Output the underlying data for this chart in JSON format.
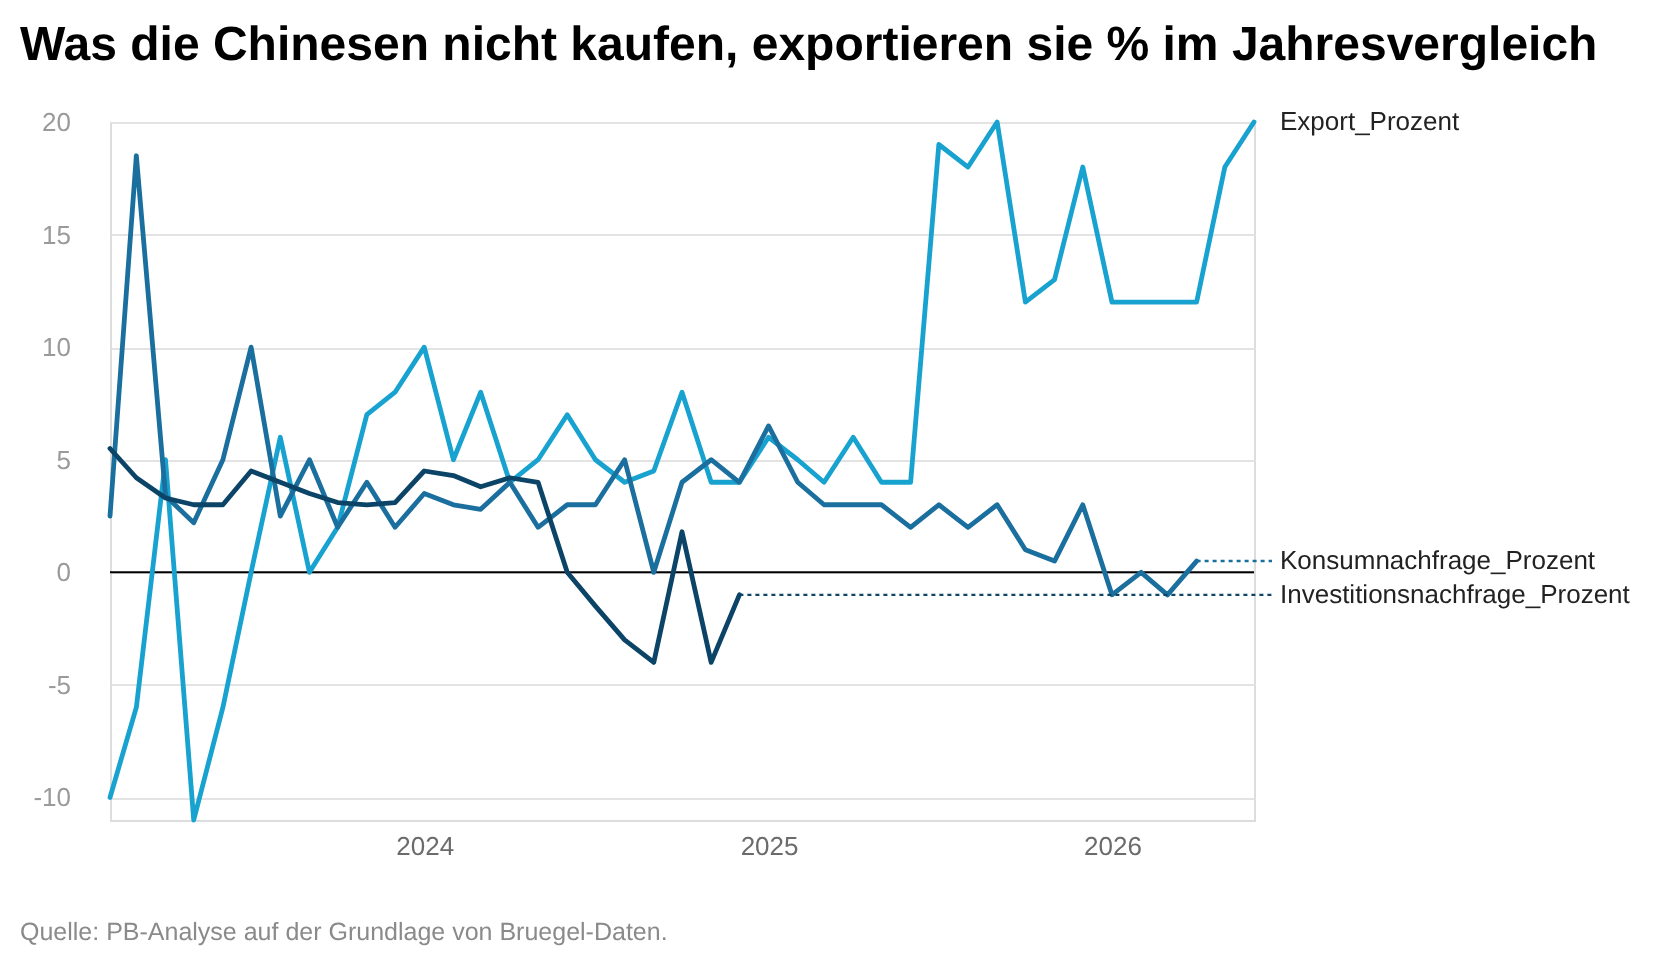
{
  "chart_data": {
    "type": "line",
    "title": "Was die Chinesen nicht kaufen, exportieren sie % im Jahresvergleich",
    "annotations": [
      "Quelle: PB-Analyse auf der Grundlage von Bruegel-Daten."
    ],
    "xlim": [
      "2023-02",
      "2026-06"
    ],
    "xticks": [
      "2024",
      "2025",
      "2026"
    ],
    "ylim": [
      -11,
      20
    ],
    "yticks": [
      -10,
      -5,
      0,
      5,
      10,
      15,
      20
    ],
    "grid": "y",
    "ref_lines": [
      {
        "axis": "y",
        "value": 0,
        "color": "#000000"
      }
    ],
    "series": [
      {
        "name": "Export_Prozent",
        "color": "#18a2d0",
        "x": [
          "2023-02",
          "2023-03",
          "2023-04",
          "2023-05",
          "2023-06",
          "2023-07",
          "2023-08",
          "2023-09",
          "2023-10",
          "2023-11",
          "2023-12",
          "2024-01",
          "2024-02",
          "2024-03",
          "2024-04",
          "2024-05",
          "2024-06",
          "2024-07",
          "2024-08",
          "2024-09",
          "2024-10",
          "2024-11",
          "2024-12",
          "2025-01",
          "2025-02",
          "2025-03",
          "2025-04",
          "2025-05",
          "2025-06",
          "2025-07",
          "2025-08",
          "2025-09",
          "2025-10",
          "2025-11",
          "2025-12",
          "2026-01",
          "2026-02",
          "2026-03",
          "2026-04",
          "2026-05",
          "2026-06"
        ],
        "values": [
          -10,
          -6,
          5,
          -11,
          -6,
          0,
          6,
          0,
          2,
          7,
          8,
          10,
          5,
          8,
          4,
          5,
          7,
          5,
          4,
          4.5,
          8,
          4,
          4,
          6,
          5,
          4,
          6,
          4,
          4,
          19,
          18,
          20,
          12,
          13,
          18,
          12,
          12,
          12,
          12,
          18,
          20
        ]
      },
      {
        "name": "Konsumnachfrage_Prozent",
        "color": "#1a6f9e",
        "x": [
          "2023-02",
          "2023-03",
          "2023-04",
          "2023-05",
          "2023-06",
          "2023-07",
          "2023-08",
          "2023-09",
          "2023-10",
          "2023-11",
          "2023-12",
          "2024-01",
          "2024-02",
          "2024-03",
          "2024-04",
          "2024-05",
          "2024-06",
          "2024-07",
          "2024-08",
          "2024-09",
          "2024-10",
          "2024-11",
          "2024-12",
          "2025-01",
          "2025-02",
          "2025-03",
          "2025-04",
          "2025-05",
          "2025-06",
          "2025-07",
          "2025-08",
          "2025-09",
          "2025-10",
          "2025-11",
          "2025-12",
          "2026-01",
          "2026-02",
          "2026-03",
          "2026-04"
        ],
        "values": [
          2.5,
          18.5,
          3.4,
          2.2,
          5,
          10,
          2.5,
          5,
          2,
          4,
          2,
          3.5,
          3,
          2.8,
          4,
          2,
          3,
          3,
          5,
          0,
          4,
          5,
          4,
          6.5,
          4,
          3,
          3,
          3,
          2,
          3,
          2,
          3,
          1,
          0.5,
          3,
          -1,
          0,
          -1,
          0.5
        ]
      },
      {
        "name": "Investitionsnachfrage_Prozent",
        "color": "#0b4466",
        "x": [
          "2023-02",
          "2023-03",
          "2023-04",
          "2023-05",
          "2023-06",
          "2023-07",
          "2023-08",
          "2023-09",
          "2023-10",
          "2023-11",
          "2023-12",
          "2024-01",
          "2024-02",
          "2024-03",
          "2024-04",
          "2024-05",
          "2024-06",
          "2024-07",
          "2024-08",
          "2024-09",
          "2024-10",
          "2024-11",
          "2024-12"
        ],
        "values": [
          5.5,
          4.2,
          3.3,
          3,
          3,
          4.5,
          4,
          3.5,
          3.1,
          3,
          3.1,
          4.5,
          4.3,
          3.8,
          4.2,
          4,
          0,
          -1.5,
          -3,
          -4,
          1.8,
          -4,
          -1
        ]
      }
    ]
  }
}
